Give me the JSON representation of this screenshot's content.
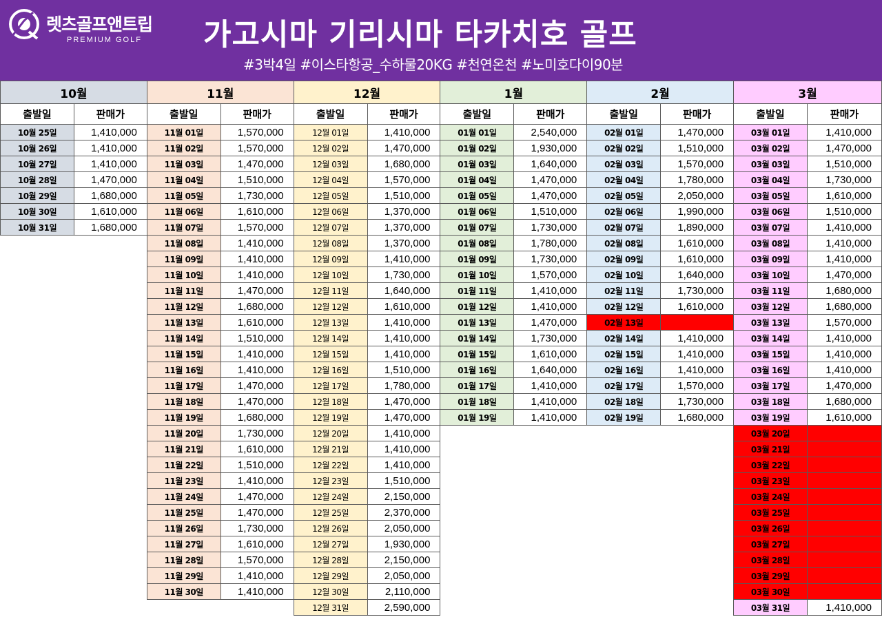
{
  "header": {
    "brand_name": "렛츠골프앤트립",
    "brand_sub": "PREMIUM GOLF",
    "title": "가고시마 기리시마 타카치호 골프",
    "subtitle": "#3박4일 #이스타항공_수하물20KG #천연온천 #노미호다이90분",
    "background_color": "#7030a0",
    "logo_icon": "golfer-icon"
  },
  "columns_header": {
    "date": "출발일",
    "price": "판매가"
  },
  "colors": {
    "oct": "#d6dce4",
    "nov": "#fbe4d5",
    "dec": "#fff2cc",
    "jan": "#e2efd9",
    "feb": "#ddebf7",
    "mar": "#ffccff",
    "soldout": "#ff0000"
  },
  "months": [
    {
      "key": "oct",
      "label": "10월",
      "rows": [
        {
          "date": "10월 25일",
          "price": "1,410,000"
        },
        {
          "date": "10월 26일",
          "price": "1,410,000"
        },
        {
          "date": "10월 27일",
          "price": "1,410,000"
        },
        {
          "date": "10월 28일",
          "price": "1,470,000"
        },
        {
          "date": "10월 29일",
          "price": "1,680,000"
        },
        {
          "date": "10월 30일",
          "price": "1,610,000"
        },
        {
          "date": "10월 31일",
          "price": "1,680,000"
        }
      ]
    },
    {
      "key": "nov",
      "label": "11월",
      "rows": [
        {
          "date": "11월 01일",
          "price": "1,570,000"
        },
        {
          "date": "11월 02일",
          "price": "1,570,000"
        },
        {
          "date": "11월 03일",
          "price": "1,470,000"
        },
        {
          "date": "11월 04일",
          "price": "1,510,000"
        },
        {
          "date": "11월 05일",
          "price": "1,730,000"
        },
        {
          "date": "11월 06일",
          "price": "1,610,000"
        },
        {
          "date": "11월 07일",
          "price": "1,570,000"
        },
        {
          "date": "11월 08일",
          "price": "1,410,000"
        },
        {
          "date": "11월 09일",
          "price": "1,410,000"
        },
        {
          "date": "11월 10일",
          "price": "1,410,000"
        },
        {
          "date": "11월 11일",
          "price": "1,470,000"
        },
        {
          "date": "11월 12일",
          "price": "1,680,000"
        },
        {
          "date": "11월 13일",
          "price": "1,610,000"
        },
        {
          "date": "11월 14일",
          "price": "1,510,000"
        },
        {
          "date": "11월 15일",
          "price": "1,410,000"
        },
        {
          "date": "11월 16일",
          "price": "1,410,000"
        },
        {
          "date": "11월 17일",
          "price": "1,470,000"
        },
        {
          "date": "11월 18일",
          "price": "1,470,000"
        },
        {
          "date": "11월 19일",
          "price": "1,680,000"
        },
        {
          "date": "11월 20일",
          "price": "1,730,000"
        },
        {
          "date": "11월 21일",
          "price": "1,610,000"
        },
        {
          "date": "11월 22일",
          "price": "1,510,000"
        },
        {
          "date": "11월 23일",
          "price": "1,410,000"
        },
        {
          "date": "11월 24일",
          "price": "1,470,000"
        },
        {
          "date": "11월 25일",
          "price": "1,470,000"
        },
        {
          "date": "11월 26일",
          "price": "1,730,000"
        },
        {
          "date": "11월 27일",
          "price": "1,610,000"
        },
        {
          "date": "11월 28일",
          "price": "1,570,000"
        },
        {
          "date": "11월 29일",
          "price": "1,410,000"
        },
        {
          "date": "11월 30일",
          "price": "1,410,000"
        }
      ]
    },
    {
      "key": "dec",
      "label": "12월",
      "rows": [
        {
          "date": "12월 01일",
          "price": "1,410,000"
        },
        {
          "date": "12월 02일",
          "price": "1,470,000"
        },
        {
          "date": "12월 03일",
          "price": "1,680,000"
        },
        {
          "date": "12월 04일",
          "price": "1,570,000"
        },
        {
          "date": "12월 05일",
          "price": "1,510,000"
        },
        {
          "date": "12월 06일",
          "price": "1,370,000"
        },
        {
          "date": "12월 07일",
          "price": "1,370,000"
        },
        {
          "date": "12월 08일",
          "price": "1,370,000"
        },
        {
          "date": "12월 09일",
          "price": "1,410,000"
        },
        {
          "date": "12월 10일",
          "price": "1,730,000"
        },
        {
          "date": "12월 11일",
          "price": "1,640,000"
        },
        {
          "date": "12월 12일",
          "price": "1,610,000"
        },
        {
          "date": "12월 13일",
          "price": "1,410,000"
        },
        {
          "date": "12월 14일",
          "price": "1,410,000"
        },
        {
          "date": "12월 15일",
          "price": "1,410,000"
        },
        {
          "date": "12월 16일",
          "price": "1,510,000"
        },
        {
          "date": "12월 17일",
          "price": "1,780,000"
        },
        {
          "date": "12월 18일",
          "price": "1,470,000"
        },
        {
          "date": "12월 19일",
          "price": "1,470,000"
        },
        {
          "date": "12월 20일",
          "price": "1,410,000"
        },
        {
          "date": "12월 21일",
          "price": "1,410,000"
        },
        {
          "date": "12월 22일",
          "price": "1,410,000"
        },
        {
          "date": "12월 23일",
          "price": "1,510,000"
        },
        {
          "date": "12월 24일",
          "price": "2,150,000"
        },
        {
          "date": "12월 25일",
          "price": "2,370,000"
        },
        {
          "date": "12월 26일",
          "price": "2,050,000"
        },
        {
          "date": "12월 27일",
          "price": "1,930,000"
        },
        {
          "date": "12월 28일",
          "price": "2,150,000"
        },
        {
          "date": "12월 29일",
          "price": "2,050,000"
        },
        {
          "date": "12월 30일",
          "price": "2,110,000"
        },
        {
          "date": "12월 31일",
          "price": "2,590,000"
        }
      ]
    },
    {
      "key": "jan",
      "label": "1월",
      "rows": [
        {
          "date": "01월 01일",
          "price": "2,540,000"
        },
        {
          "date": "01월 02일",
          "price": "1,930,000"
        },
        {
          "date": "01월 03일",
          "price": "1,640,000"
        },
        {
          "date": "01월 04일",
          "price": "1,470,000"
        },
        {
          "date": "01월 05일",
          "price": "1,470,000"
        },
        {
          "date": "01월 06일",
          "price": "1,510,000"
        },
        {
          "date": "01월 07일",
          "price": "1,730,000"
        },
        {
          "date": "01월 08일",
          "price": "1,780,000"
        },
        {
          "date": "01월 09일",
          "price": "1,730,000"
        },
        {
          "date": "01월 10일",
          "price": "1,570,000"
        },
        {
          "date": "01월 11일",
          "price": "1,410,000"
        },
        {
          "date": "01월 12일",
          "price": "1,410,000"
        },
        {
          "date": "01월 13일",
          "price": "1,470,000"
        },
        {
          "date": "01월 14일",
          "price": "1,730,000"
        },
        {
          "date": "01월 15일",
          "price": "1,610,000"
        },
        {
          "date": "01월 16일",
          "price": "1,640,000"
        },
        {
          "date": "01월 17일",
          "price": "1,410,000"
        },
        {
          "date": "01월 18일",
          "price": "1,410,000"
        },
        {
          "date": "01월 19일",
          "price": "1,410,000"
        }
      ]
    },
    {
      "key": "feb",
      "label": "2월",
      "rows": [
        {
          "date": "02월 01일",
          "price": "1,470,000"
        },
        {
          "date": "02월 02일",
          "price": "1,510,000"
        },
        {
          "date": "02월 03일",
          "price": "1,570,000"
        },
        {
          "date": "02월 04일",
          "price": "1,780,000"
        },
        {
          "date": "02월 05일",
          "price": "2,050,000"
        },
        {
          "date": "02월 06일",
          "price": "1,990,000"
        },
        {
          "date": "02월 07일",
          "price": "1,890,000"
        },
        {
          "date": "02월 08일",
          "price": "1,610,000"
        },
        {
          "date": "02월 09일",
          "price": "1,610,000"
        },
        {
          "date": "02월 10일",
          "price": "1,640,000"
        },
        {
          "date": "02월 11일",
          "price": "1,730,000"
        },
        {
          "date": "02월 12일",
          "price": "1,610,000"
        },
        {
          "date": "02월 13일",
          "price": "",
          "soldout": true
        },
        {
          "date": "02월 14일",
          "price": "1,410,000"
        },
        {
          "date": "02월 15일",
          "price": "1,410,000"
        },
        {
          "date": "02월 16일",
          "price": "1,410,000"
        },
        {
          "date": "02월 17일",
          "price": "1,570,000"
        },
        {
          "date": "02월 18일",
          "price": "1,730,000"
        },
        {
          "date": "02월 19일",
          "price": "1,680,000"
        }
      ]
    },
    {
      "key": "mar",
      "label": "3월",
      "rows": [
        {
          "date": "03월 01일",
          "price": "1,410,000"
        },
        {
          "date": "03월 02일",
          "price": "1,470,000"
        },
        {
          "date": "03월 03일",
          "price": "1,510,000"
        },
        {
          "date": "03월 04일",
          "price": "1,730,000"
        },
        {
          "date": "03월 05일",
          "price": "1,610,000"
        },
        {
          "date": "03월 06일",
          "price": "1,510,000"
        },
        {
          "date": "03월 07일",
          "price": "1,410,000"
        },
        {
          "date": "03월 08일",
          "price": "1,410,000"
        },
        {
          "date": "03월 09일",
          "price": "1,410,000"
        },
        {
          "date": "03월 10일",
          "price": "1,470,000"
        },
        {
          "date": "03월 11일",
          "price": "1,680,000"
        },
        {
          "date": "03월 12일",
          "price": "1,680,000"
        },
        {
          "date": "03월 13일",
          "price": "1,570,000"
        },
        {
          "date": "03월 14일",
          "price": "1,410,000"
        },
        {
          "date": "03월 15일",
          "price": "1,410,000"
        },
        {
          "date": "03월 16일",
          "price": "1,410,000"
        },
        {
          "date": "03월 17일",
          "price": "1,470,000"
        },
        {
          "date": "03월 18일",
          "price": "1,680,000"
        },
        {
          "date": "03월 19일",
          "price": "1,610,000"
        },
        {
          "date": "03월 20일",
          "price": "",
          "soldout": true
        },
        {
          "date": "03월 21일",
          "price": "",
          "soldout": true
        },
        {
          "date": "03월 22일",
          "price": "",
          "soldout": true
        },
        {
          "date": "03월 23일",
          "price": "",
          "soldout": true
        },
        {
          "date": "03월 24일",
          "price": "",
          "soldout": true
        },
        {
          "date": "03월 25일",
          "price": "",
          "soldout": true
        },
        {
          "date": "03월 26일",
          "price": "",
          "soldout": true
        },
        {
          "date": "03월 27일",
          "price": "",
          "soldout": true
        },
        {
          "date": "03월 28일",
          "price": "",
          "soldout": true
        },
        {
          "date": "03월 29일",
          "price": "",
          "soldout": true
        },
        {
          "date": "03월 30일",
          "price": "",
          "soldout": true
        },
        {
          "date": "03월 31일",
          "price": "1,410,000"
        }
      ]
    }
  ]
}
